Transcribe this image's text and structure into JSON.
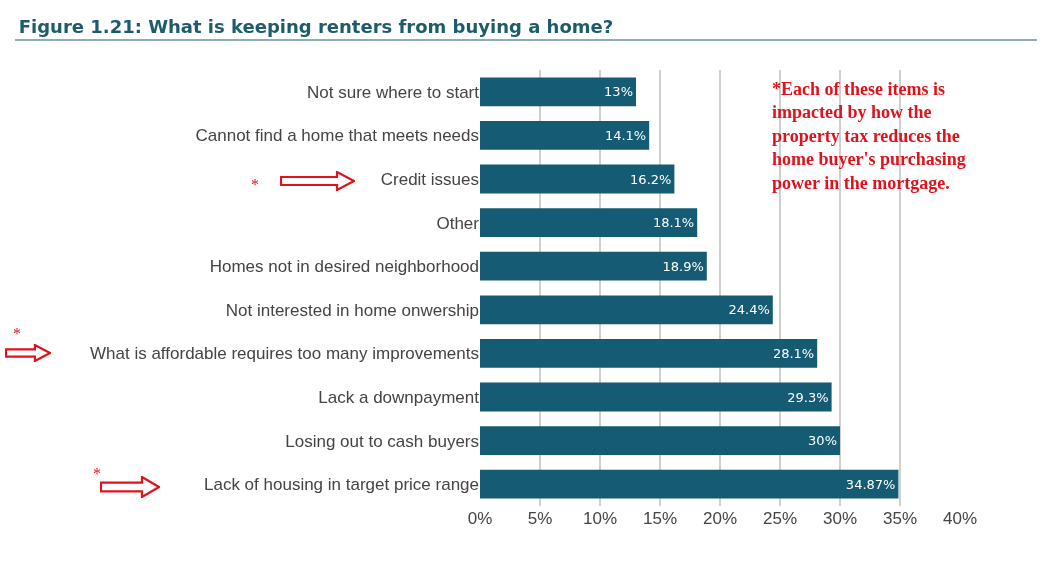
{
  "chart_data": {
    "type": "bar",
    "orientation": "horizontal",
    "title": "Figure 1.21: What is keeping renters from buying a home?",
    "categories": [
      "Not sure where to start",
      "Cannot find a home that meets needs",
      "Credit issues",
      "Other",
      "Homes not in desired neighborhood",
      "Not interested in home onwership",
      "What is affordable requires too many improvements",
      "Lack a downpayment",
      "Losing out to cash buyers",
      "Lack of housing in target price range"
    ],
    "values": [
      13,
      14.1,
      16.2,
      18.1,
      18.9,
      24.4,
      28.1,
      29.3,
      30,
      34.87
    ],
    "value_labels": [
      "13%",
      "14.1%",
      "16.2%",
      "18.1%",
      "18.9%",
      "24.4%",
      "28.1%",
      "29.3%",
      "30%",
      "34.87%"
    ],
    "color": "#145b73",
    "xlim": [
      0,
      40
    ],
    "xticks": [
      {
        "value": 0,
        "label": "0%"
      },
      {
        "value": 5,
        "label": "5%"
      },
      {
        "value": 10,
        "label": "10%"
      },
      {
        "value": 15,
        "label": "15%"
      },
      {
        "value": 20,
        "label": "20%"
      },
      {
        "value": 25,
        "label": "25%"
      },
      {
        "value": 30,
        "label": "30%"
      },
      {
        "value": 35,
        "label": "35%"
      },
      {
        "value": 40,
        "label": "40%"
      }
    ],
    "grid": "x",
    "annotations": [
      "*",
      "*",
      "*",
      "*Each of these items is\nimpacted by how the\nproperty tax reduces the\nhome buyer's purchasing\npower in the mortgage."
    ]
  }
}
